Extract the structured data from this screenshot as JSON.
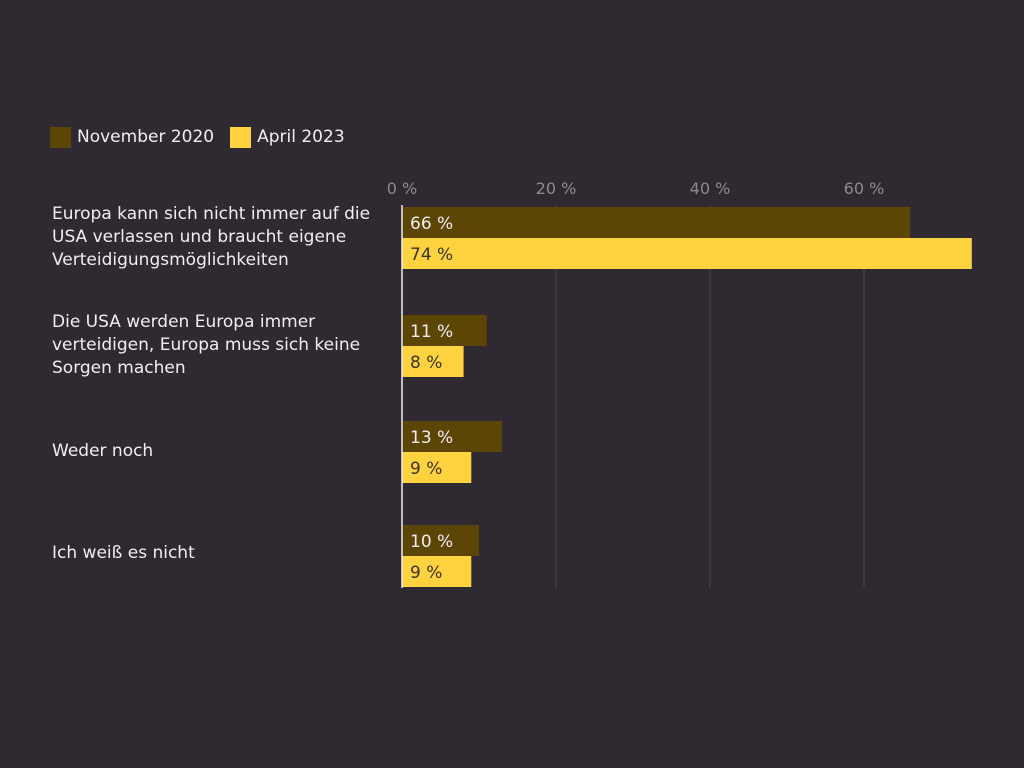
{
  "colors": {
    "background": "#2f2a32",
    "series_1": "#5c4606",
    "series_2": "#ffd23f",
    "tick_text": "#8f8a92",
    "grid": "#4a454d",
    "label_on_dark": "#f1edf2",
    "label_on_light": "#3a3222"
  },
  "chart_data": {
    "type": "bar",
    "orientation": "horizontal",
    "categories": [
      "Europa kann sich nicht immer auf die USA verlassen und braucht eigene Verteidigungsmöglichkeiten",
      "Die USA werden Europa immer verteidigen, Europa muss sich keine Sorgen machen",
      "Weder noch",
      "Ich weiß es nicht"
    ],
    "series": [
      {
        "name": "November 2020",
        "values": [
          66,
          11,
          13,
          10
        ],
        "labels": [
          "66 %",
          "11 %",
          "13 %",
          "10 %"
        ]
      },
      {
        "name": "April 2023",
        "values": [
          74,
          8,
          9,
          9
        ],
        "labels": [
          "74 %",
          "8 %",
          "9 %",
          "9 %"
        ]
      }
    ],
    "xticks": [
      0,
      20,
      40,
      60
    ],
    "xtick_labels": [
      "0 %",
      "20 %",
      "40 %",
      "60 %"
    ],
    "xlim": [
      0,
      75
    ],
    "grid": true,
    "legend_position": "top-left"
  }
}
